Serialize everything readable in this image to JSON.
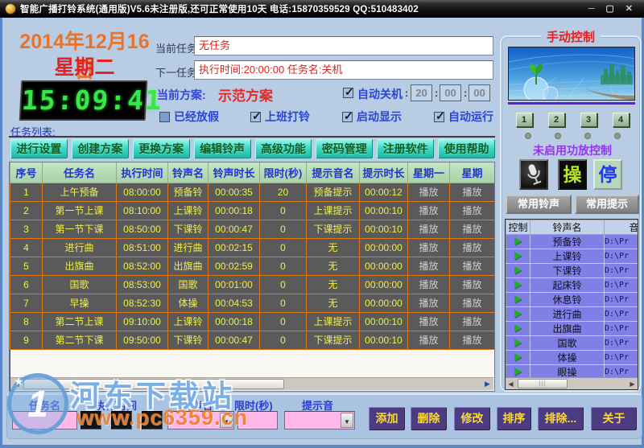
{
  "window": {
    "title": "智能广播打铃系统(通用版)V5.6未注册版,还可正常使用10天 电话:15870359529 QQ:510483402",
    "minimize_glyph": "─",
    "maximize_glyph": "▢",
    "close_glyph": "✕"
  },
  "header": {
    "date": "2014年12月16日",
    "weekday": "星期二",
    "clock": "15:09:41",
    "current_task_label": "当前任务:",
    "current_task_value": "无任务",
    "next_task_label": "下一任务:",
    "next_task_value": "执行时间:20:00:00 任务名:关机",
    "plan_label": "当前方案:",
    "plan_value": "示范方案",
    "auto_shutdown": {
      "label": "自动关机",
      "checked": true,
      "hh": "20",
      "mm": "00",
      "ss": "00"
    },
    "checkboxes": [
      {
        "label": "已经放假",
        "checked": false
      },
      {
        "label": "上班打铃",
        "checked": true
      },
      {
        "label": "启动显示",
        "checked": true
      },
      {
        "label": "自动运行",
        "checked": true
      }
    ]
  },
  "task_list_label": "任务列表:",
  "menu_buttons": [
    "进行设置",
    "创建方案",
    "更换方案",
    "编辑铃声",
    "高级功能",
    "密码管理",
    "注册软件",
    "使用帮助"
  ],
  "task_table": {
    "headers": [
      "序号",
      "任务名",
      "执行时间",
      "铃声名",
      "铃声时长",
      "限时(秒)",
      "提示音名",
      "提示时长",
      "星期一",
      "星期"
    ],
    "rows": [
      [
        "1",
        "上午预备",
        "08:00:00",
        "预备铃",
        "00:00:35",
        "20",
        "预备提示",
        "00:00:12",
        "播放",
        "播放"
      ],
      [
        "2",
        "第一节上课",
        "08:10:00",
        "上课铃",
        "00:00:18",
        "0",
        "上课提示",
        "00:00:10",
        "播放",
        "播放"
      ],
      [
        "3",
        "第一节下课",
        "08:50:00",
        "下课铃",
        "00:00:47",
        "0",
        "下课提示",
        "00:00:10",
        "播放",
        "播放"
      ],
      [
        "4",
        "进行曲",
        "08:51:00",
        "进行曲",
        "00:02:15",
        "0",
        "无",
        "00:00:00",
        "播放",
        "播放"
      ],
      [
        "5",
        "出旗曲",
        "08:52:00",
        "出旗曲",
        "00:02:59",
        "0",
        "无",
        "00:00:00",
        "播放",
        "播放"
      ],
      [
        "6",
        "国歌",
        "08:53:00",
        "国歌",
        "00:01:00",
        "0",
        "无",
        "00:00:00",
        "播放",
        "播放"
      ],
      [
        "7",
        "早操",
        "08:52:30",
        "体操",
        "00:04:53",
        "0",
        "无",
        "00:00:00",
        "播放",
        "播放"
      ],
      [
        "8",
        "第二节上课",
        "09:10:00",
        "上课铃",
        "00:00:18",
        "0",
        "上课提示",
        "00:00:10",
        "播放",
        "播放"
      ],
      [
        "9",
        "第二节下课",
        "09:50:00",
        "下课铃",
        "00:00:47",
        "0",
        "下课提示",
        "00:00:10",
        "播放",
        "播放"
      ]
    ]
  },
  "manual_panel": {
    "title": "手动控制",
    "channel_buttons": [
      "1",
      "2",
      "3",
      "4"
    ],
    "status_text": "未启用功放控制",
    "operate_label": "操",
    "stop_label": "停",
    "common_rings_label": "常用铃声",
    "common_prompts_label": "常用提示",
    "list": {
      "headers": [
        "控制",
        "铃声名",
        "音"
      ],
      "rows": [
        {
          "name": "预备铃",
          "path": "D:\\Pr"
        },
        {
          "name": "上课铃",
          "path": "D:\\Pr"
        },
        {
          "name": "下课铃",
          "path": "D:\\Pr"
        },
        {
          "name": "起床铃",
          "path": "D:\\Pr"
        },
        {
          "name": "休息铃",
          "path": "D:\\Pr"
        },
        {
          "name": "进行曲",
          "path": "D:\\Pr"
        },
        {
          "name": "出旗曲",
          "path": "D:\\Pr"
        },
        {
          "name": "国歌",
          "path": "D:\\Pr"
        },
        {
          "name": "体操",
          "path": "D:\\Pr"
        },
        {
          "name": "眼操",
          "path": "D:\\Pr"
        }
      ]
    }
  },
  "bottom_form": {
    "task_name_label": "任务名",
    "exec_time_label": "执行时间",
    "ring_name_label": "铃声名",
    "limit_label": "限时(秒)",
    "prompt_label": "提示音"
  },
  "bottom_buttons": [
    "添加",
    "删除",
    "修改",
    "排序",
    "排除...",
    "关于"
  ],
  "watermark": {
    "site_name": "河东下载站",
    "site_url": "www.pc6359.cn",
    "logo_glyph": "1",
    "star_glyph": "★"
  },
  "colors": {
    "accent_red": "#e82020",
    "clock_green": "#35e845",
    "grid_orange": "#e07818",
    "row_yellow": "#f0f04a",
    "list_purple": "#7f7fe6",
    "button_teal": "#40d8c6",
    "button_purple": "#4a3c7e"
  }
}
